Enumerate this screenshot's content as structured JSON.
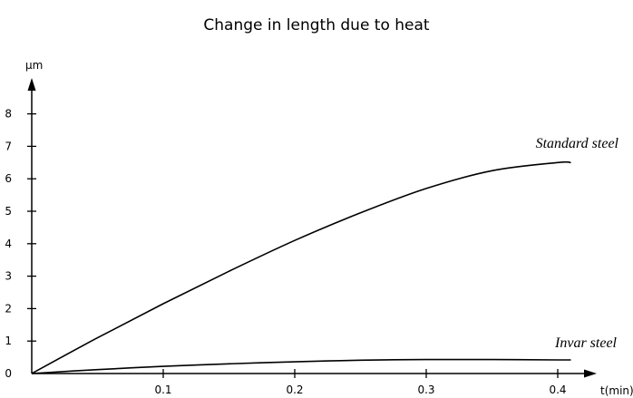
{
  "chart_data": {
    "type": "line",
    "title": "Change in length due to heat",
    "xlabel": "t(min)",
    "ylabel": "µm",
    "xlim": [
      0,
      0.42
    ],
    "ylim": [
      0,
      8
    ],
    "x_ticks": [
      0.1,
      0.2,
      0.3,
      0.4
    ],
    "x_tick_labels": [
      "0.1",
      "0.2",
      "0.3",
      "0.4"
    ],
    "y_ticks": [
      0,
      1,
      2,
      3,
      4,
      5,
      6,
      7,
      8
    ],
    "y_tick_labels": [
      "0",
      "1",
      "2",
      "3",
      "4",
      "5",
      "6",
      "7",
      "8"
    ],
    "grid": false,
    "legend": "none",
    "series": [
      {
        "name": "Standard steel",
        "x": [
          0,
          0.05,
          0.1,
          0.15,
          0.2,
          0.25,
          0.3,
          0.35,
          0.4,
          0.41
        ],
        "y": [
          0,
          1.1,
          2.15,
          3.15,
          4.1,
          4.95,
          5.7,
          6.25,
          6.5,
          6.5
        ]
      },
      {
        "name": "Invar steel",
        "x": [
          0,
          0.05,
          0.1,
          0.15,
          0.2,
          0.25,
          0.3,
          0.35,
          0.4,
          0.41
        ],
        "y": [
          0,
          0.12,
          0.22,
          0.3,
          0.36,
          0.41,
          0.43,
          0.43,
          0.42,
          0.42
        ]
      }
    ]
  }
}
